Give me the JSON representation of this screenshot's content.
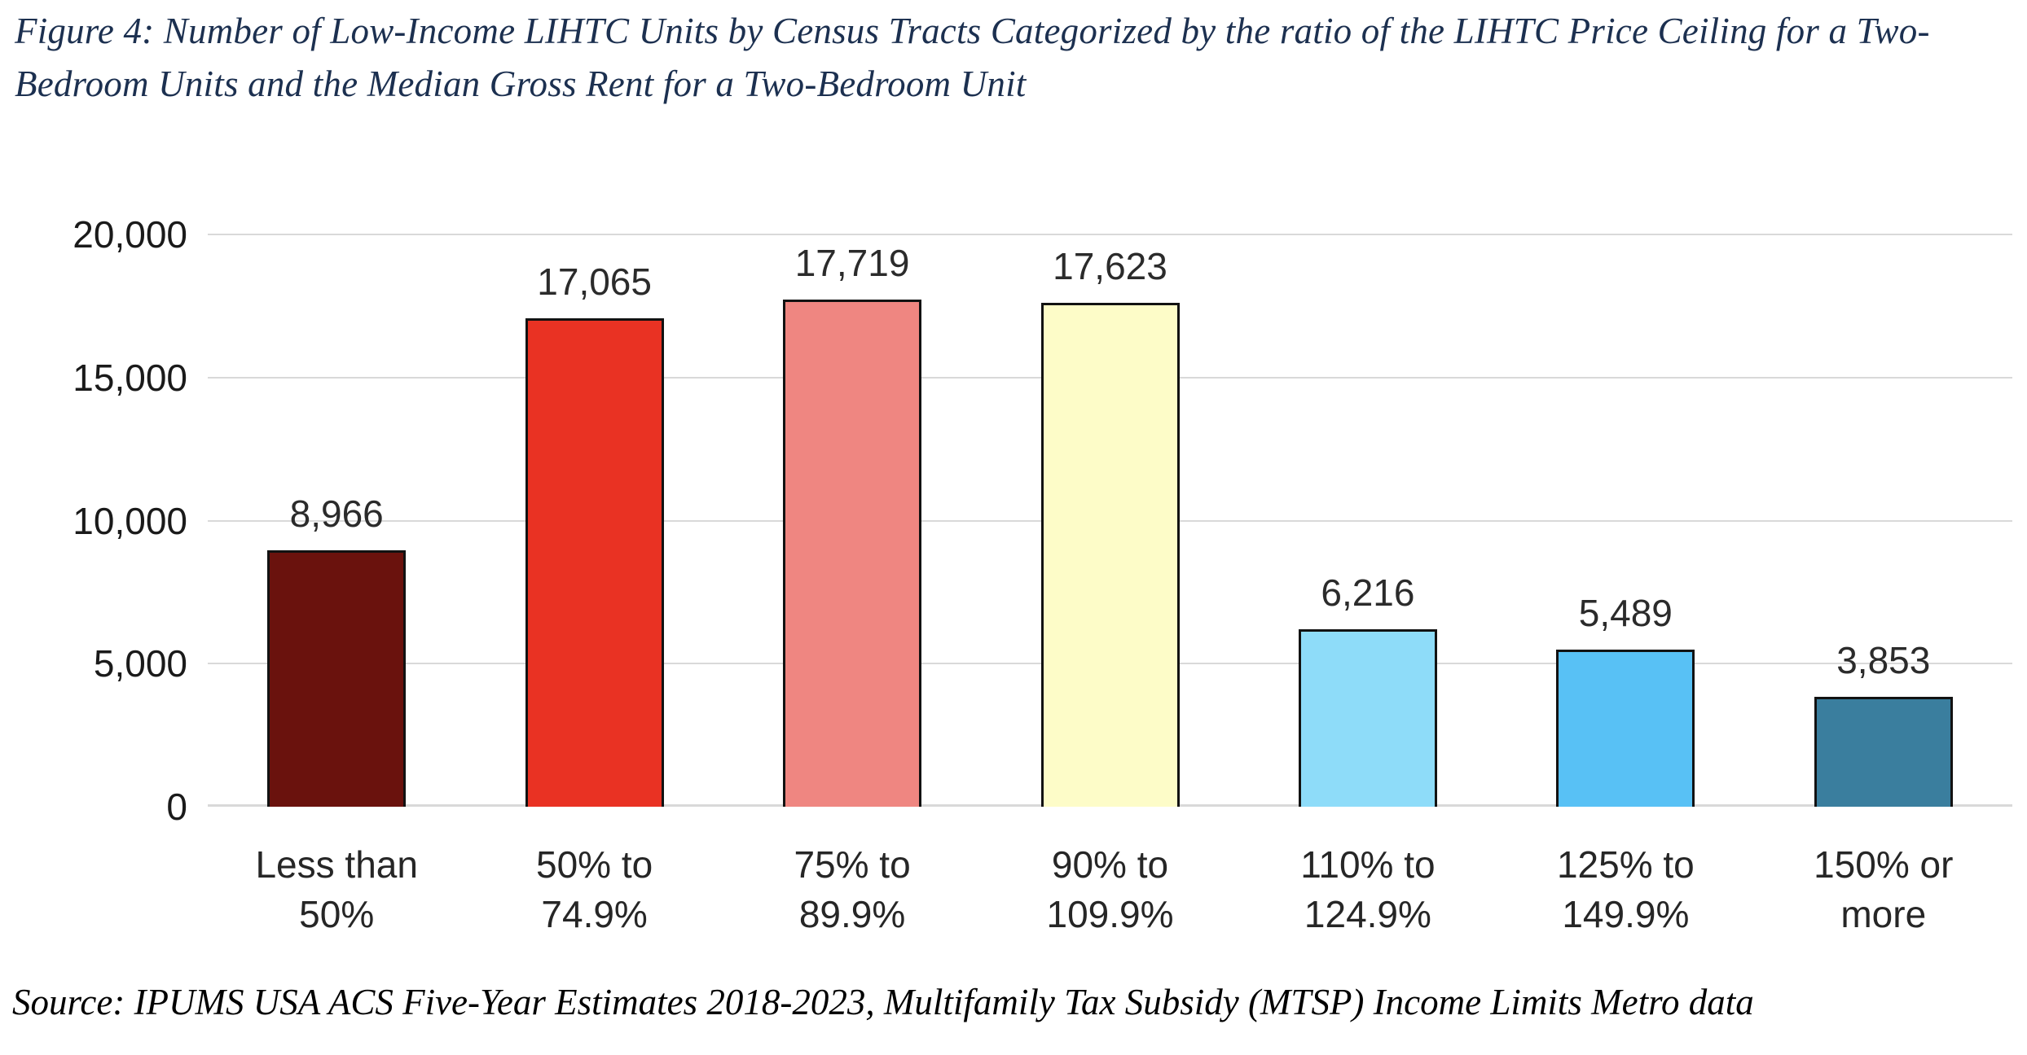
{
  "figure": {
    "title": "Figure 4: Number of Low-Income LIHTC Units by Census Tracts Categorized by the ratio of the LIHTC Price Ceiling for a Two-Bedroom Units and the Median Gross Rent for a Two-Bedroom Unit",
    "title_color": "#1c3050",
    "source": "Source: IPUMS USA ACS Five-Year Estimates 2018-2023, Multifamily Tax Subsidy (MTSP) Income Limits Metro data"
  },
  "chart_data": {
    "type": "bar",
    "title": "Figure 4: Number of Low-Income LIHTC Units by Census Tracts Categorized by the ratio of the LIHTC Price Ceiling for a Two-Bedroom Units and the Median Gross Rent for a Two-Bedroom Unit",
    "xlabel": "",
    "ylabel": "",
    "ylim": [
      0,
      20000
    ],
    "grid": true,
    "legend_position": "none",
    "gridline_color": "#d9d9d9",
    "bar_border_color": "#121212",
    "categories": [
      "Less than 50%",
      "50% to 74.9%",
      "75% to 89.9%",
      "90% to 109.9%",
      "110% to 124.9%",
      "125% to 149.9%",
      "150% or more"
    ],
    "category_lines": [
      [
        "Less than",
        "50%"
      ],
      [
        "50% to",
        "74.9%"
      ],
      [
        "75% to",
        "89.9%"
      ],
      [
        "90% to",
        "109.9%"
      ],
      [
        "110% to",
        "124.9%"
      ],
      [
        "125% to",
        "149.9%"
      ],
      [
        "150% or",
        "more"
      ]
    ],
    "values": [
      8966,
      17065,
      17719,
      17623,
      6216,
      5489,
      3853
    ],
    "value_labels": [
      "8,966",
      "17,065",
      "17,719",
      "17,623",
      "6,216",
      "5,489",
      "3,853"
    ],
    "bar_colors": [
      "#6A120D",
      "#E93223",
      "#EF8681",
      "#FDFCC8",
      "#8EDCF9",
      "#58C1F5",
      "#3A7E9E"
    ],
    "yticks": [
      {
        "value": 0,
        "label": "0"
      },
      {
        "value": 5000,
        "label": "5,000"
      },
      {
        "value": 10000,
        "label": "10,000"
      },
      {
        "value": 15000,
        "label": "15,000"
      },
      {
        "value": 20000,
        "label": "20,000"
      }
    ]
  }
}
